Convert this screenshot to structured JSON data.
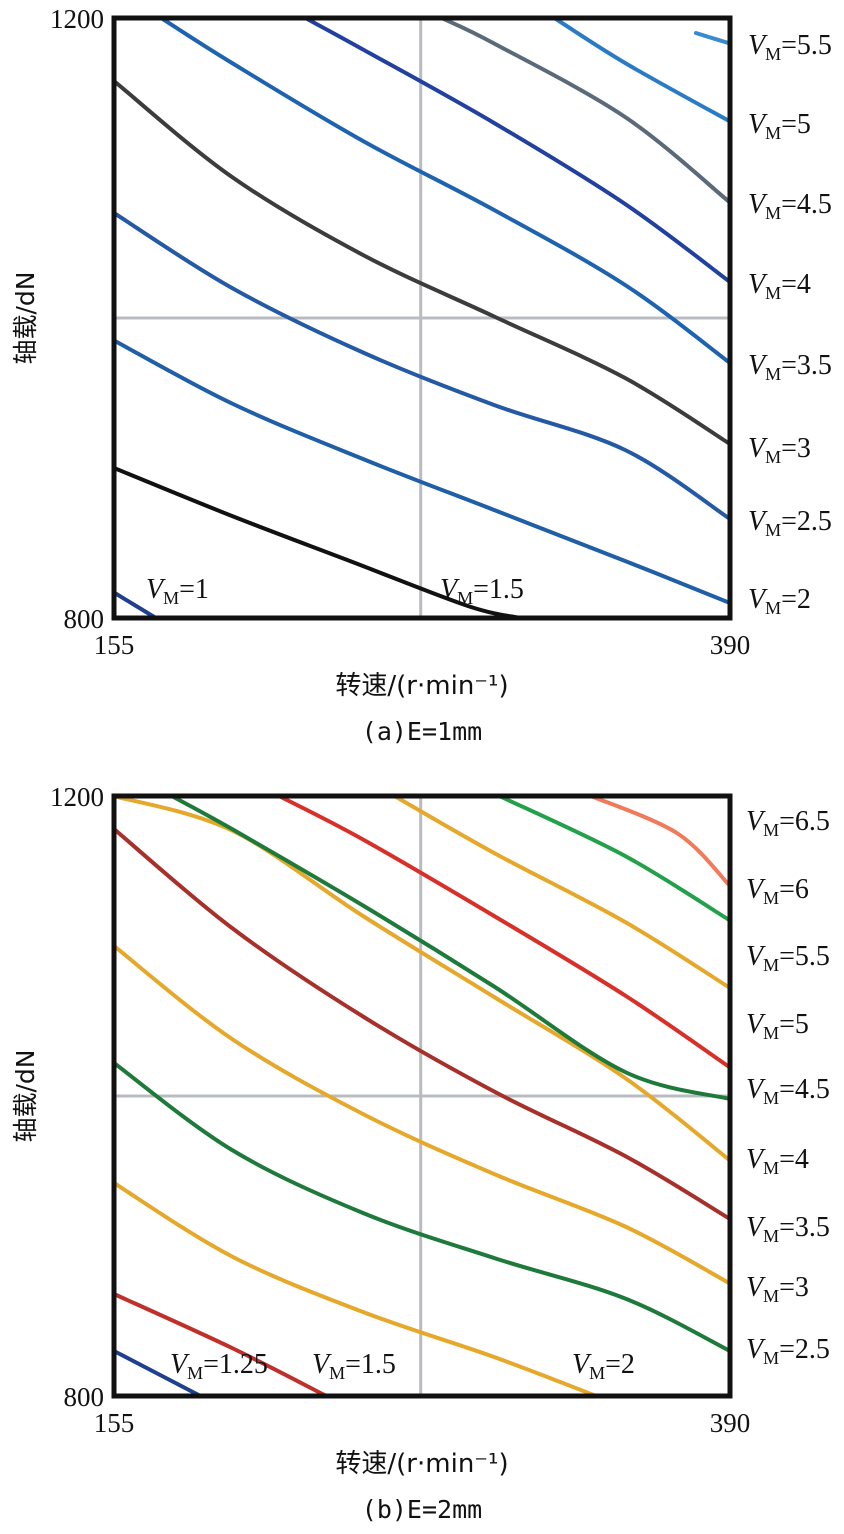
{
  "chart_data": [
    {
      "type": "line",
      "caption": "(a)E=1mm",
      "xlabel": "转速/(r·min⁻¹)",
      "ylabel": "轴载/dN",
      "xlim": [
        155,
        390
      ],
      "ylim": [
        800,
        1200
      ],
      "x_ticks": [
        "155",
        "390"
      ],
      "y_ticks": [
        "800",
        "1200"
      ],
      "ref_lines": {
        "x": 272,
        "y": 1000
      },
      "grid": false,
      "series": [
        {
          "name": "1",
          "color": "#1f3f8f",
          "x": [
            155,
            171
          ],
          "y": [
            817,
            800
          ]
        },
        {
          "name": "1.5",
          "color": "#111111",
          "x": [
            155,
            200,
            245,
            290,
            310
          ],
          "y": [
            900,
            868,
            838,
            808,
            800
          ]
        },
        {
          "name": "2",
          "color": "#1f5fa8",
          "x": [
            155,
            200,
            250,
            300,
            350,
            390
          ],
          "y": [
            985,
            943,
            906,
            872,
            838,
            810
          ]
        },
        {
          "name": "2.5",
          "color": "#2459a6",
          "x": [
            155,
            200,
            250,
            300,
            350,
            390
          ],
          "y": [
            1070,
            1020,
            977,
            942,
            912,
            866
          ]
        },
        {
          "name": "3",
          "color": "#3c3c3c",
          "x": [
            155,
            200,
            250,
            300,
            350,
            390
          ],
          "y": [
            1158,
            1094,
            1042,
            1001,
            960,
            916
          ]
        },
        {
          "name": "3.5",
          "color": "#1e63b0",
          "x": [
            173,
            200,
            250,
            300,
            350,
            390
          ],
          "y": [
            1200,
            1170,
            1118,
            1072,
            1022,
            970
          ]
        },
        {
          "name": "4",
          "color": "#2140a0",
          "x": [
            228,
            250,
            300,
            350,
            390
          ],
          "y": [
            1200,
            1179,
            1130,
            1076,
            1024
          ]
        },
        {
          "name": "4.5",
          "color": "#5a6a78",
          "x": [
            280,
            300,
            350,
            390
          ],
          "y": [
            1200,
            1183,
            1134,
            1077
          ]
        },
        {
          "name": "5",
          "color": "#2a7bc6",
          "x": [
            323,
            350,
            390
          ],
          "y": [
            1200,
            1170,
            1131
          ]
        },
        {
          "name": "5.5",
          "color": "#3a8ad0",
          "x": [
            377,
            390
          ],
          "y": [
            1190,
            1183
          ]
        }
      ],
      "labels_inside": [
        {
          "name": "V",
          "sub": "M",
          "text": "=1"
        },
        {
          "name": "V",
          "sub": "M",
          "text": "=1.5"
        }
      ],
      "labels_right": [
        {
          "name": "V",
          "sub": "M",
          "text": "=5.5"
        },
        {
          "name": "V",
          "sub": "M",
          "text": "=5"
        },
        {
          "name": "V",
          "sub": "M",
          "text": "=4.5"
        },
        {
          "name": "V",
          "sub": "M",
          "text": "=4"
        },
        {
          "name": "V",
          "sub": "M",
          "text": "=3.5"
        },
        {
          "name": "V",
          "sub": "M",
          "text": "=3"
        },
        {
          "name": "V",
          "sub": "M",
          "text": "=2.5"
        },
        {
          "name": "V",
          "sub": "M",
          "text": "=2"
        }
      ]
    },
    {
      "type": "line",
      "caption": "(b)E=2mm",
      "xlabel": "转速/(r·min⁻¹)",
      "ylabel": "轴载/dN",
      "xlim": [
        155,
        390
      ],
      "ylim": [
        800,
        1200
      ],
      "x_ticks": [
        "155",
        "390"
      ],
      "y_ticks": [
        "800",
        "1200"
      ],
      "ref_lines": {
        "x": 272,
        "y": 1000
      },
      "grid": false,
      "series": [
        {
          "name": "1.25",
          "color": "#1f3f8f",
          "x": [
            155,
            188
          ],
          "y": [
            830,
            800
          ]
        },
        {
          "name": "1.5",
          "color": "#c0302a",
          "x": [
            155,
            200,
            236
          ],
          "y": [
            868,
            832,
            800
          ]
        },
        {
          "name": "2",
          "color": "#e6a82a",
          "x": [
            155,
            200,
            250,
            300,
            339
          ],
          "y": [
            942,
            893,
            856,
            826,
            800
          ]
        },
        {
          "name": "2.5",
          "color": "#1e7a3a",
          "x": [
            155,
            200,
            250,
            300,
            350,
            390
          ],
          "y": [
            1022,
            964,
            922,
            892,
            865,
            830
          ]
        },
        {
          "name": "3",
          "color": "#e6a82a",
          "x": [
            155,
            200,
            250,
            300,
            350,
            390
          ],
          "y": [
            1100,
            1038,
            988,
            948,
            913,
            875
          ]
        },
        {
          "name": "3.5",
          "color": "#a8302a",
          "x": [
            155,
            200,
            250,
            300,
            350,
            390
          ],
          "y": [
            1178,
            1112,
            1053,
            1003,
            960,
            918
          ]
        },
        {
          "name": "4",
          "color": "#e6a82a",
          "x": [
            155,
            200,
            250,
            300,
            350,
            390
          ],
          "y": [
            1200,
            1177,
            1120,
            1066,
            1012,
            957
          ]
        },
        {
          "name": "4.5",
          "color": "#1e7a3a",
          "x": [
            177,
            200,
            250,
            300,
            350,
            390
          ],
          "y": [
            1200,
            1178,
            1127,
            1073,
            1016,
            998
          ]
        },
        {
          "name": "5",
          "color": "#d83028",
          "x": [
            218,
            250,
            300,
            350,
            390
          ],
          "y": [
            1200,
            1171,
            1120,
            1067,
            1019
          ]
        },
        {
          "name": "5.5",
          "color": "#e6a82a",
          "x": [
            262,
            300,
            350,
            390
          ],
          "y": [
            1200,
            1162,
            1116,
            1072
          ]
        },
        {
          "name": "6",
          "color": "#22a04a",
          "x": [
            302,
            350,
            390
          ],
          "y": [
            1200,
            1160,
            1117
          ]
        },
        {
          "name": "6.5",
          "color": "#f07a5a",
          "x": [
            337,
            370,
            390
          ],
          "y": [
            1200,
            1175,
            1140
          ]
        }
      ],
      "labels_inside": [
        {
          "name": "V",
          "sub": "M",
          "text": "=1.25"
        },
        {
          "name": "V",
          "sub": "M",
          "text": "=1.5"
        },
        {
          "name": "V",
          "sub": "M",
          "text": "=2"
        }
      ],
      "labels_right": [
        {
          "name": "V",
          "sub": "M",
          "text": "=6.5"
        },
        {
          "name": "V",
          "sub": "M",
          "text": "=6"
        },
        {
          "name": "V",
          "sub": "M",
          "text": "=5.5"
        },
        {
          "name": "V",
          "sub": "M",
          "text": "=5"
        },
        {
          "name": "V",
          "sub": "M",
          "text": "=4.5"
        },
        {
          "name": "V",
          "sub": "M",
          "text": "=4"
        },
        {
          "name": "V",
          "sub": "M",
          "text": "=3.5"
        },
        {
          "name": "V",
          "sub": "M",
          "text": "=3"
        },
        {
          "name": "V",
          "sub": "M",
          "text": "=2.5"
        }
      ]
    }
  ]
}
